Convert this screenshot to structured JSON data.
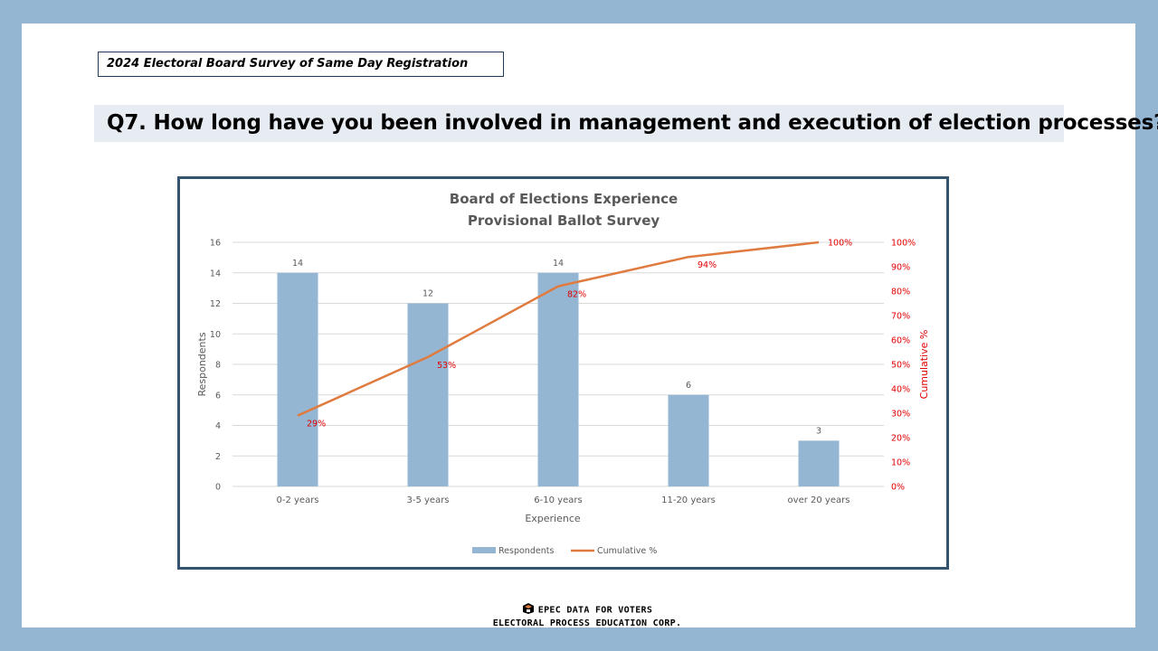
{
  "header": {
    "survey_title": "2024 Electoral Board Survey of Same Day Registration",
    "question": "Q7. How long have you been involved in management and execution of election processes?"
  },
  "chart_data": {
    "type": "bar",
    "title": "Board of Elections Experience",
    "subtitle": "Provisional Ballot Survey",
    "categories": [
      "0-2 years",
      "3-5 years",
      "6-10 years",
      "11-20 years",
      "over 20 years"
    ],
    "series": [
      {
        "name": "Respondents",
        "type": "bar",
        "axis": "left",
        "values": [
          14,
          12,
          14,
          6,
          3
        ],
        "labels": [
          "14",
          "12",
          "14",
          "6",
          "3"
        ]
      },
      {
        "name": "Cumulative %",
        "type": "line",
        "axis": "right",
        "values": [
          29,
          53,
          82,
          94,
          100
        ],
        "labels": [
          "29%",
          "53%",
          "82%",
          "94%",
          "100%"
        ]
      }
    ],
    "xlabel": "Experience",
    "ylabel": "Respondents",
    "y2label": "Cumulative %",
    "ylim": [
      0,
      16
    ],
    "yticks": [
      "0",
      "2",
      "4",
      "6",
      "8",
      "10",
      "12",
      "14",
      "16"
    ],
    "y2lim": [
      0,
      100
    ],
    "y2ticks": [
      "0%",
      "10%",
      "20%",
      "30%",
      "40%",
      "50%",
      "60%",
      "70%",
      "80%",
      "90%",
      "100%"
    ],
    "grid": true,
    "legend": "bottom",
    "colors": {
      "bar": "#94b6d3",
      "line": "#e07b3f",
      "secondary_axis": "#e00000",
      "grid": "#d9d9d9"
    }
  },
  "footer": {
    "line1": "EPEC DATA FOR VOTERS",
    "line2": "ELECTORAL PROCESS EDUCATION CORP.",
    "logo_icon": "ballot-box-icon"
  }
}
